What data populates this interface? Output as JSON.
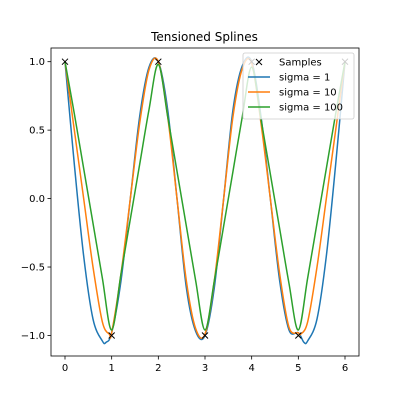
{
  "chart_data": {
    "type": "line",
    "title": "Tensioned Splines",
    "xlabel": "",
    "ylabel": "",
    "xlim": [
      -0.3,
      6.3
    ],
    "ylim": [
      -1.15,
      1.1
    ],
    "xticks": [
      0,
      1,
      2,
      3,
      4,
      5,
      6
    ],
    "yticks": [
      -1.0,
      -0.5,
      0.0,
      0.5,
      1.0
    ],
    "xtick_labels": [
      "0",
      "1",
      "2",
      "3",
      "4",
      "5",
      "6"
    ],
    "ytick_labels": [
      "−1.0",
      "−0.5",
      "0.0",
      "0.5",
      "1.0"
    ],
    "grid": false,
    "legend_position": "top-right",
    "samples": {
      "name": "Samples",
      "marker": "x",
      "color": "#000000",
      "x": [
        0,
        1,
        2,
        3,
        4,
        5,
        6
      ],
      "y": [
        1,
        -1,
        1,
        -1,
        1,
        -1,
        1
      ]
    },
    "series": [
      {
        "name": "sigma = 1",
        "color": "#1f77b4",
        "x": [
          0,
          0.2,
          0.4,
          0.6,
          0.8,
          0.88,
          1.0,
          1.2,
          1.4,
          1.6,
          1.8,
          2.0,
          2.2,
          2.4,
          2.6,
          2.8,
          3.0,
          3.2,
          3.4,
          3.6,
          3.8,
          4.0,
          4.2,
          4.4,
          4.6,
          4.8,
          5.0,
          5.12,
          5.2,
          5.4,
          5.6,
          5.8,
          6.0
        ],
        "y": [
          1.0,
          0.25,
          -0.42,
          -0.88,
          -1.04,
          -1.05,
          -0.98,
          -0.6,
          0.0,
          0.6,
          0.96,
          1.0,
          0.65,
          0.0,
          -0.65,
          -0.97,
          -1.0,
          -0.65,
          0.0,
          0.65,
          0.97,
          1.0,
          0.6,
          0.0,
          -0.6,
          -0.96,
          -0.98,
          -1.05,
          -1.04,
          -0.88,
          -0.42,
          0.25,
          1.0
        ]
      },
      {
        "name": "sigma = 10",
        "color": "#ff7f0e",
        "x": [
          0,
          0.2,
          0.4,
          0.6,
          0.8,
          0.95,
          1.0,
          1.2,
          1.4,
          1.6,
          1.8,
          2.0,
          2.2,
          2.4,
          2.6,
          2.8,
          3.0,
          3.2,
          3.4,
          3.6,
          3.8,
          4.0,
          4.2,
          4.4,
          4.6,
          4.8,
          5.0,
          5.05,
          5.2,
          5.4,
          5.6,
          5.8,
          6.0
        ],
        "y": [
          1.0,
          0.5,
          0.0,
          -0.5,
          -0.9,
          -0.99,
          -0.98,
          -0.55,
          0.0,
          0.55,
          0.94,
          1.0,
          0.6,
          0.0,
          -0.6,
          -0.95,
          -0.99,
          -0.6,
          0.0,
          0.6,
          0.95,
          0.99,
          0.55,
          0.0,
          -0.55,
          -0.94,
          -0.98,
          -0.99,
          -0.9,
          -0.5,
          0.0,
          0.5,
          1.0
        ]
      },
      {
        "name": "sigma = 100",
        "color": "#2ca02c",
        "x": [
          0,
          0.2,
          0.4,
          0.6,
          0.8,
          1.0,
          1.2,
          1.4,
          1.6,
          1.8,
          2.0,
          2.2,
          2.4,
          2.6,
          2.8,
          3.0,
          3.2,
          3.4,
          3.6,
          3.8,
          4.0,
          4.2,
          4.4,
          4.6,
          4.8,
          5.0,
          5.2,
          5.4,
          5.6,
          5.8,
          6.0
        ],
        "y": [
          1.0,
          0.62,
          0.22,
          -0.18,
          -0.58,
          -0.96,
          -0.55,
          -0.15,
          0.25,
          0.65,
          0.98,
          0.6,
          0.2,
          -0.2,
          -0.6,
          -0.96,
          -0.6,
          -0.2,
          0.2,
          0.6,
          0.96,
          0.58,
          0.18,
          -0.22,
          -0.62,
          -0.96,
          -0.58,
          -0.18,
          0.22,
          0.62,
          1.0
        ]
      }
    ]
  }
}
